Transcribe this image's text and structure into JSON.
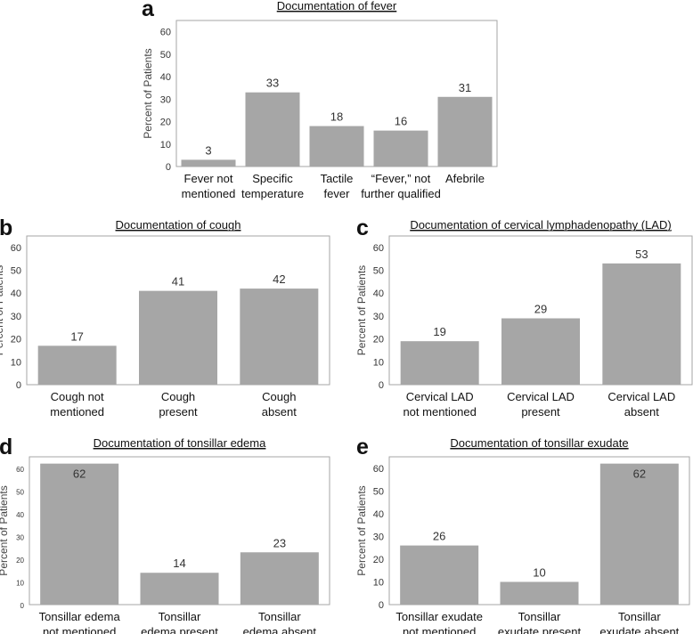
{
  "chart_data": [
    {
      "panel": "a",
      "type": "bar",
      "title": "Documentation of fever",
      "ylabel": "Percent of Patients",
      "ylim": [
        0,
        65
      ],
      "yticks": [
        0,
        10,
        20,
        30,
        40,
        50,
        60
      ],
      "categories": [
        [
          "Fever not",
          "mentioned"
        ],
        [
          "Specific",
          "temperature"
        ],
        [
          "Tactile",
          "fever"
        ],
        [
          "“Fever,” not",
          "further qualified"
        ],
        [
          "Afebrile"
        ]
      ],
      "values": [
        3,
        33,
        18,
        16,
        31
      ],
      "color": "#a6a6a6"
    },
    {
      "panel": "b",
      "type": "bar",
      "title": "Documentation of cough",
      "ylabel": "Percent of Patients",
      "ylim": [
        0,
        65
      ],
      "yticks": [
        0,
        10,
        20,
        30,
        40,
        50,
        60
      ],
      "categories": [
        [
          "Cough not",
          "mentioned"
        ],
        [
          "Cough",
          "present"
        ],
        [
          "Cough",
          "absent"
        ]
      ],
      "values": [
        17,
        41,
        42
      ],
      "color": "#a6a6a6"
    },
    {
      "panel": "c",
      "type": "bar",
      "title": "Documentation of cervical lymphadenopathy (LAD)",
      "ylabel": "Percent of Patients",
      "ylim": [
        0,
        65
      ],
      "yticks": [
        0,
        10,
        20,
        30,
        40,
        50,
        60
      ],
      "categories": [
        [
          "Cervical LAD",
          "not mentioned"
        ],
        [
          "Cervical LAD",
          "present"
        ],
        [
          "Cervical LAD",
          "absent"
        ]
      ],
      "values": [
        19,
        29,
        53
      ],
      "color": "#a6a6a6"
    },
    {
      "panel": "d",
      "type": "bar",
      "title": "Documentation of tonsillar edema",
      "ylabel": "Percent of Patients",
      "ylim": [
        0,
        65
      ],
      "yticks": [
        0,
        10,
        20,
        30,
        40,
        50,
        60
      ],
      "categories": [
        [
          "Tonsillar edema",
          "not mentioned"
        ],
        [
          "Tonsillar",
          "edema present"
        ],
        [
          "Tonsillar",
          "edema absent"
        ]
      ],
      "values": [
        62,
        14,
        23
      ],
      "color": "#a6a6a6"
    },
    {
      "panel": "e",
      "type": "bar",
      "title": "Documentation of tonsillar exudate",
      "ylabel": "Percent of Patients",
      "ylim": [
        0,
        65
      ],
      "yticks": [
        0,
        10,
        20,
        30,
        40,
        50,
        60
      ],
      "categories": [
        [
          "Tonsillar exudate",
          "not mentioned"
        ],
        [
          "Tonsillar",
          "exudate present"
        ],
        [
          "Tonsillar",
          "exudate absent"
        ]
      ],
      "values": [
        26,
        10,
        62
      ],
      "color": "#a6a6a6"
    }
  ]
}
